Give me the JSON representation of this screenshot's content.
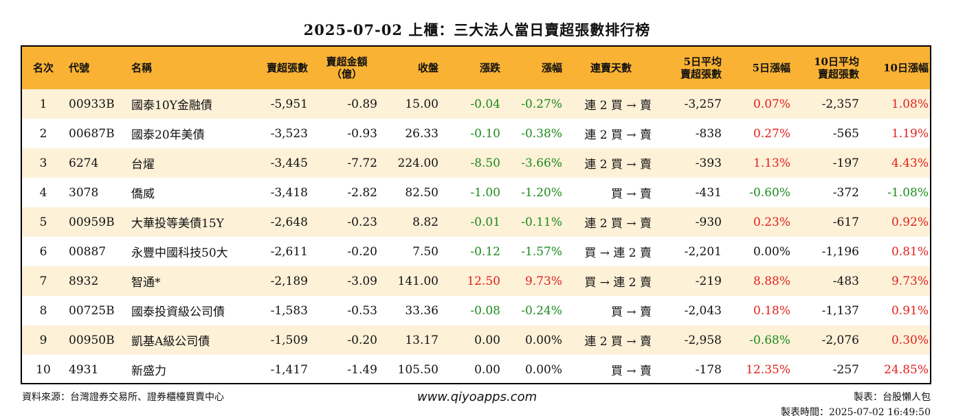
{
  "title": "2025-07-02 上櫃：三大法人當日賣超張數排行榜",
  "headers": {
    "rank": "名次",
    "code": "代號",
    "name": "名稱",
    "sell_volume": "賣超張數",
    "sell_amount_1": "賣超金額",
    "sell_amount_2": "（億）",
    "close": "收盤",
    "change": "漲跌",
    "change_pct": "漲幅",
    "streak": "連賣天數",
    "avg5_1": "5日平均",
    "avg5_2": "賣超張數",
    "pct5": "5日漲幅",
    "avg10_1": "10日平均",
    "avg10_2": "賣超張數",
    "pct10": "10日漲幅"
  },
  "rows": [
    {
      "rank": "1",
      "code": "00933B",
      "name": "國泰10Y金融債",
      "sell_volume": "-5,951",
      "sell_amount": "-0.89",
      "close": "15.00",
      "change": "-0.04",
      "change_pct": "-0.27%",
      "streak": "連 2 買 → 賣",
      "avg5": "-3,257",
      "pct5": "0.07%",
      "avg10": "-2,357",
      "pct10": "1.08%"
    },
    {
      "rank": "2",
      "code": "00687B",
      "name": "國泰20年美債",
      "sell_volume": "-3,523",
      "sell_amount": "-0.93",
      "close": "26.33",
      "change": "-0.10",
      "change_pct": "-0.38%",
      "streak": "連 2 買 → 賣",
      "avg5": "-838",
      "pct5": "0.27%",
      "avg10": "-565",
      "pct10": "1.19%"
    },
    {
      "rank": "3",
      "code": "6274",
      "name": "台燿",
      "sell_volume": "-3,445",
      "sell_amount": "-7.72",
      "close": "224.00",
      "change": "-8.50",
      "change_pct": "-3.66%",
      "streak": "連 2 買 → 賣",
      "avg5": "-393",
      "pct5": "1.13%",
      "avg10": "-197",
      "pct10": "4.43%"
    },
    {
      "rank": "4",
      "code": "3078",
      "name": "僑威",
      "sell_volume": "-3,418",
      "sell_amount": "-2.82",
      "close": "82.50",
      "change": "-1.00",
      "change_pct": "-1.20%",
      "streak": "買 → 賣",
      "avg5": "-431",
      "pct5": "-0.60%",
      "avg10": "-372",
      "pct10": "-1.08%"
    },
    {
      "rank": "5",
      "code": "00959B",
      "name": "大華投等美債15Y",
      "sell_volume": "-2,648",
      "sell_amount": "-0.23",
      "close": "8.82",
      "change": "-0.01",
      "change_pct": "-0.11%",
      "streak": "連 2 買 → 賣",
      "avg5": "-930",
      "pct5": "0.23%",
      "avg10": "-617",
      "pct10": "0.92%"
    },
    {
      "rank": "6",
      "code": "00887",
      "name": "永豐中國科技50大",
      "sell_volume": "-2,611",
      "sell_amount": "-0.20",
      "close": "7.50",
      "change": "-0.12",
      "change_pct": "-1.57%",
      "streak": "買 → 連 2 賣",
      "avg5": "-2,201",
      "pct5": "0.00%",
      "avg10": "-1,196",
      "pct10": "0.81%"
    },
    {
      "rank": "7",
      "code": "8932",
      "name": "智通*",
      "sell_volume": "-2,189",
      "sell_amount": "-3.09",
      "close": "141.00",
      "change": "12.50",
      "change_pct": "9.73%",
      "streak": "買 → 連 2 賣",
      "avg5": "-219",
      "pct5": "8.88%",
      "avg10": "-483",
      "pct10": "9.73%"
    },
    {
      "rank": "8",
      "code": "00725B",
      "name": "國泰投資級公司債",
      "sell_volume": "-1,583",
      "sell_amount": "-0.53",
      "close": "33.36",
      "change": "-0.08",
      "change_pct": "-0.24%",
      "streak": "買 → 賣",
      "avg5": "-2,043",
      "pct5": "0.18%",
      "avg10": "-1,137",
      "pct10": "0.91%"
    },
    {
      "rank": "9",
      "code": "00950B",
      "name": "凱基A級公司債",
      "sell_volume": "-1,509",
      "sell_amount": "-0.20",
      "close": "13.17",
      "change": "0.00",
      "change_pct": "0.00%",
      "streak": "連 2 買 → 賣",
      "avg5": "-2,958",
      "pct5": "-0.68%",
      "avg10": "-2,076",
      "pct10": "0.30%"
    },
    {
      "rank": "10",
      "code": "4931",
      "name": "新盛力",
      "sell_volume": "-1,417",
      "sell_amount": "-1.49",
      "close": "105.50",
      "change": "0.00",
      "change_pct": "0.00%",
      "streak": "買 → 賣",
      "avg5": "-178",
      "pct5": "12.35%",
      "avg10": "-257",
      "pct10": "24.85%"
    }
  ],
  "footer": {
    "source": "資料來源：台灣證券交易所、證券櫃檯買賣中心",
    "website": "www.qiyoapps.com",
    "maker": "製表：台股懶人包",
    "made_time": "製表時間：2025-07-02 16:49:50"
  },
  "colors": {
    "header_bg": "#f9b234",
    "stripe_bg": "#fdf1d8",
    "positive": "#e0201b",
    "negative": "#1a8a1a"
  }
}
